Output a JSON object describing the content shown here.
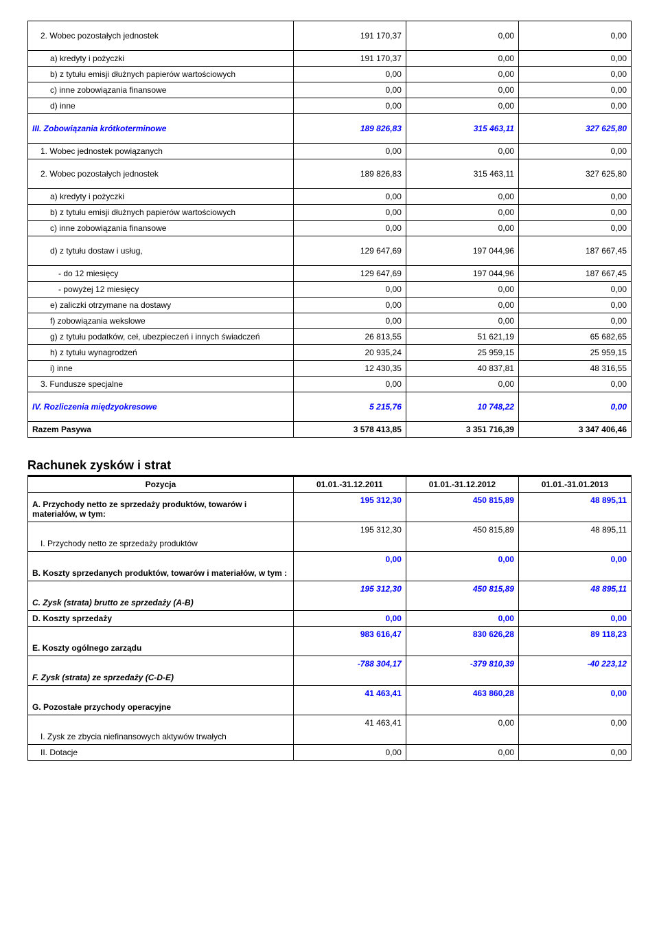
{
  "table1": {
    "rows": [
      {
        "label": "2. Wobec pozostałych jednostek",
        "c1": "191 170,37",
        "c2": "0,00",
        "c3": "0,00",
        "tall": true,
        "indent": 1
      },
      {
        "label": "a) kredyty i pożyczki",
        "c1": "191 170,37",
        "c2": "0,00",
        "c3": "0,00",
        "indent": 2
      },
      {
        "label": "b) z tytułu emisji dłużnych papierów wartościowych",
        "c1": "0,00",
        "c2": "0,00",
        "c3": "0,00",
        "indent": 2
      },
      {
        "label": "c) inne zobowiązania finansowe",
        "c1": "0,00",
        "c2": "0,00",
        "c3": "0,00",
        "indent": 2
      },
      {
        "label": "d) inne",
        "c1": "0,00",
        "c2": "0,00",
        "c3": "0,00",
        "indent": 2
      },
      {
        "label": "III. Zobowiązania krótkoterminowe",
        "c1": "189 826,83",
        "c2": "315 463,11",
        "c3": "327 625,80",
        "blue": true,
        "bold": true,
        "italic": true,
        "tall": true
      },
      {
        "label": "1. Wobec jednostek powiązanych",
        "c1": "0,00",
        "c2": "0,00",
        "c3": "0,00",
        "indent": 1
      },
      {
        "label": "2. Wobec pozostałych jednostek",
        "c1": "189 826,83",
        "c2": "315 463,11",
        "c3": "327 625,80",
        "tall": true,
        "indent": 1
      },
      {
        "label": "a) kredyty i pożyczki",
        "c1": "0,00",
        "c2": "0,00",
        "c3": "0,00",
        "indent": 2
      },
      {
        "label": "b) z tytułu emisji dłużnych papierów wartościowych",
        "c1": "0,00",
        "c2": "0,00",
        "c3": "0,00",
        "indent": 2
      },
      {
        "label": "c) inne zobowiązania finansowe",
        "c1": "0,00",
        "c2": "0,00",
        "c3": "0,00",
        "indent": 2
      },
      {
        "label": "d) z tytułu dostaw i usług,",
        "c1": "129 647,69",
        "c2": "197 044,96",
        "c3": "187 667,45",
        "indent": 2,
        "tall": true
      },
      {
        "label": "- do 12 miesięcy",
        "c1": "129 647,69",
        "c2": "197 044,96",
        "c3": "187 667,45",
        "indent": 3
      },
      {
        "label": "- powyżej 12 miesięcy",
        "c1": "0,00",
        "c2": "0,00",
        "c3": "0,00",
        "indent": 3
      },
      {
        "label": "e) zaliczki otrzymane na dostawy",
        "c1": "0,00",
        "c2": "0,00",
        "c3": "0,00",
        "indent": 2
      },
      {
        "label": "f) zobowiązania wekslowe",
        "c1": "0,00",
        "c2": "0,00",
        "c3": "0,00",
        "indent": 2
      },
      {
        "label": "g) z tytułu podatków, ceł, ubezpieczeń i innych świadczeń",
        "c1": "26 813,55",
        "c2": "51 621,19",
        "c3": "65 682,65",
        "indent": 2
      },
      {
        "label": "h) z tytułu wynagrodzeń",
        "c1": "20 935,24",
        "c2": "25 959,15",
        "c3": "25 959,15",
        "indent": 2
      },
      {
        "label": "i) inne",
        "c1": "12 430,35",
        "c2": "40 837,81",
        "c3": "48 316,55",
        "indent": 2
      },
      {
        "label": "3. Fundusze specjalne",
        "c1": "0,00",
        "c2": "0,00",
        "c3": "0,00",
        "indent": 1
      },
      {
        "label": "IV. Rozliczenia międzyokresowe",
        "c1": "5 215,76",
        "c2": "10 748,22",
        "c3": "0,00",
        "blue": true,
        "bold": true,
        "italic": true,
        "tall": true
      },
      {
        "label": "Razem  Pasywa",
        "c1": "3 578 413,85",
        "c2": "3 351 716,39",
        "c3": "3 347 406,46",
        "bold": true
      }
    ]
  },
  "section2_title": "Rachunek zysków i strat",
  "table2": {
    "header": {
      "label": "Pozycja",
      "c1": "01.01.-31.12.2011",
      "c2": "01.01.-31.12.2012",
      "c3": "01.01.-31.01.2013"
    },
    "rows": [
      {
        "label": "A. Przychody netto ze sprzedaży produktów, towarów i materiałów, w tym:",
        "c1": "195 312,30",
        "c2": "450 815,89",
        "c3": "48 895,11",
        "bold": true,
        "blueNums": true,
        "tall": true,
        "valignBottom": true
      },
      {
        "label": "I. Przychody netto ze sprzedaży produktów",
        "c1": "195 312,30",
        "c2": "450 815,89",
        "c3": "48 895,11",
        "indent": 1,
        "tall": true,
        "valignBottom": true
      },
      {
        "label": "B. Koszty sprzedanych produktów, towarów i materiałów, w tym :",
        "c1": "0,00",
        "c2": "0,00",
        "c3": "0,00",
        "bold": true,
        "blueNums": true,
        "tall": true,
        "valignBottom": true
      },
      {
        "label": "C. Zysk (strata) brutto ze sprzedaży (A-B)",
        "c1": "195 312,30",
        "c2": "450 815,89",
        "c3": "48 895,11",
        "bold": true,
        "italic": true,
        "blueNums": true,
        "tall": true,
        "valignBottom": true
      },
      {
        "label": "D. Koszty sprzedaży",
        "c1": "0,00",
        "c2": "0,00",
        "c3": "0,00",
        "bold": true,
        "blueNums": true
      },
      {
        "label": "E. Koszty ogólnego zarządu",
        "c1": "983 616,47",
        "c2": "830 626,28",
        "c3": "89 118,23",
        "bold": true,
        "blueNums": true,
        "tall": true,
        "valignBottom": true
      },
      {
        "label": "F. Zysk (strata) ze sprzedaży (C-D-E)",
        "c1": "-788 304,17",
        "c2": "-379 810,39",
        "c3": "-40 223,12",
        "bold": true,
        "italic": true,
        "blueNums": true,
        "tall": true,
        "valignBottom": true
      },
      {
        "label": "G. Pozostałe przychody operacyjne",
        "c1": "41 463,41",
        "c2": "463 860,28",
        "c3": "0,00",
        "bold": true,
        "blueNums": true,
        "tall": true,
        "valignBottom": true
      },
      {
        "label": "I. Zysk ze zbycia niefinansowych aktywów trwałych",
        "c1": "41 463,41",
        "c2": "0,00",
        "c3": "0,00",
        "indent": 1,
        "tall": true,
        "valignBottom": true
      },
      {
        "label": "II. Dotacje",
        "c1": "0,00",
        "c2": "0,00",
        "c3": "0,00",
        "indent": 1
      }
    ]
  }
}
